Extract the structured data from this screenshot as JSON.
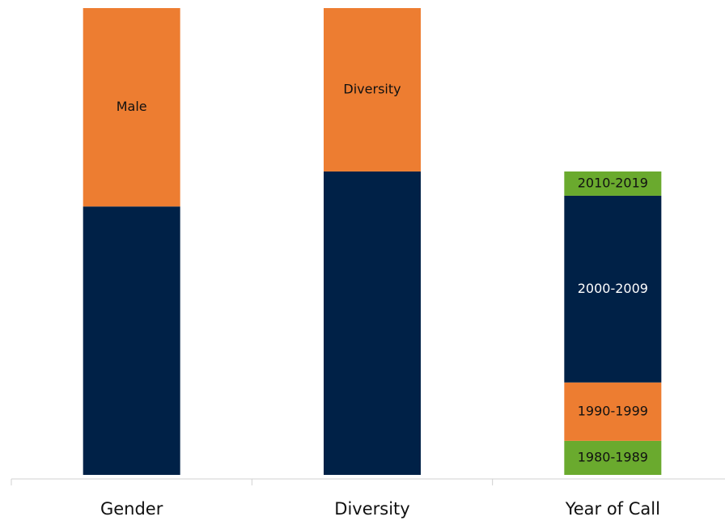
{
  "chart_data": {
    "type": "stacked_bar",
    "categories": [
      "Gender",
      "Diversity",
      "Year of Call"
    ],
    "ylim": [
      0,
      100
    ],
    "bars": [
      {
        "segments": [
          {
            "value": 57.5,
            "color": "#002147"
          },
          {
            "label": "Male",
            "value": 42.5,
            "color": "#ed7d31"
          }
        ]
      },
      {
        "segments": [
          {
            "value": 65,
            "color": "#002147"
          },
          {
            "label": "Diversity",
            "value": 35,
            "color": "#ed7d31"
          }
        ]
      },
      {
        "segments": [
          {
            "label": "1980-1989",
            "value": 7.3,
            "color": "#6aaa2e"
          },
          {
            "label": "1990-1999",
            "value": 12.5,
            "color": "#ed7d31"
          },
          {
            "label": "2000-2009",
            "value": 40,
            "color": "#002147"
          },
          {
            "label": "2010-2019",
            "value": 5.2,
            "color": "#6aaa2e"
          }
        ]
      }
    ]
  }
}
